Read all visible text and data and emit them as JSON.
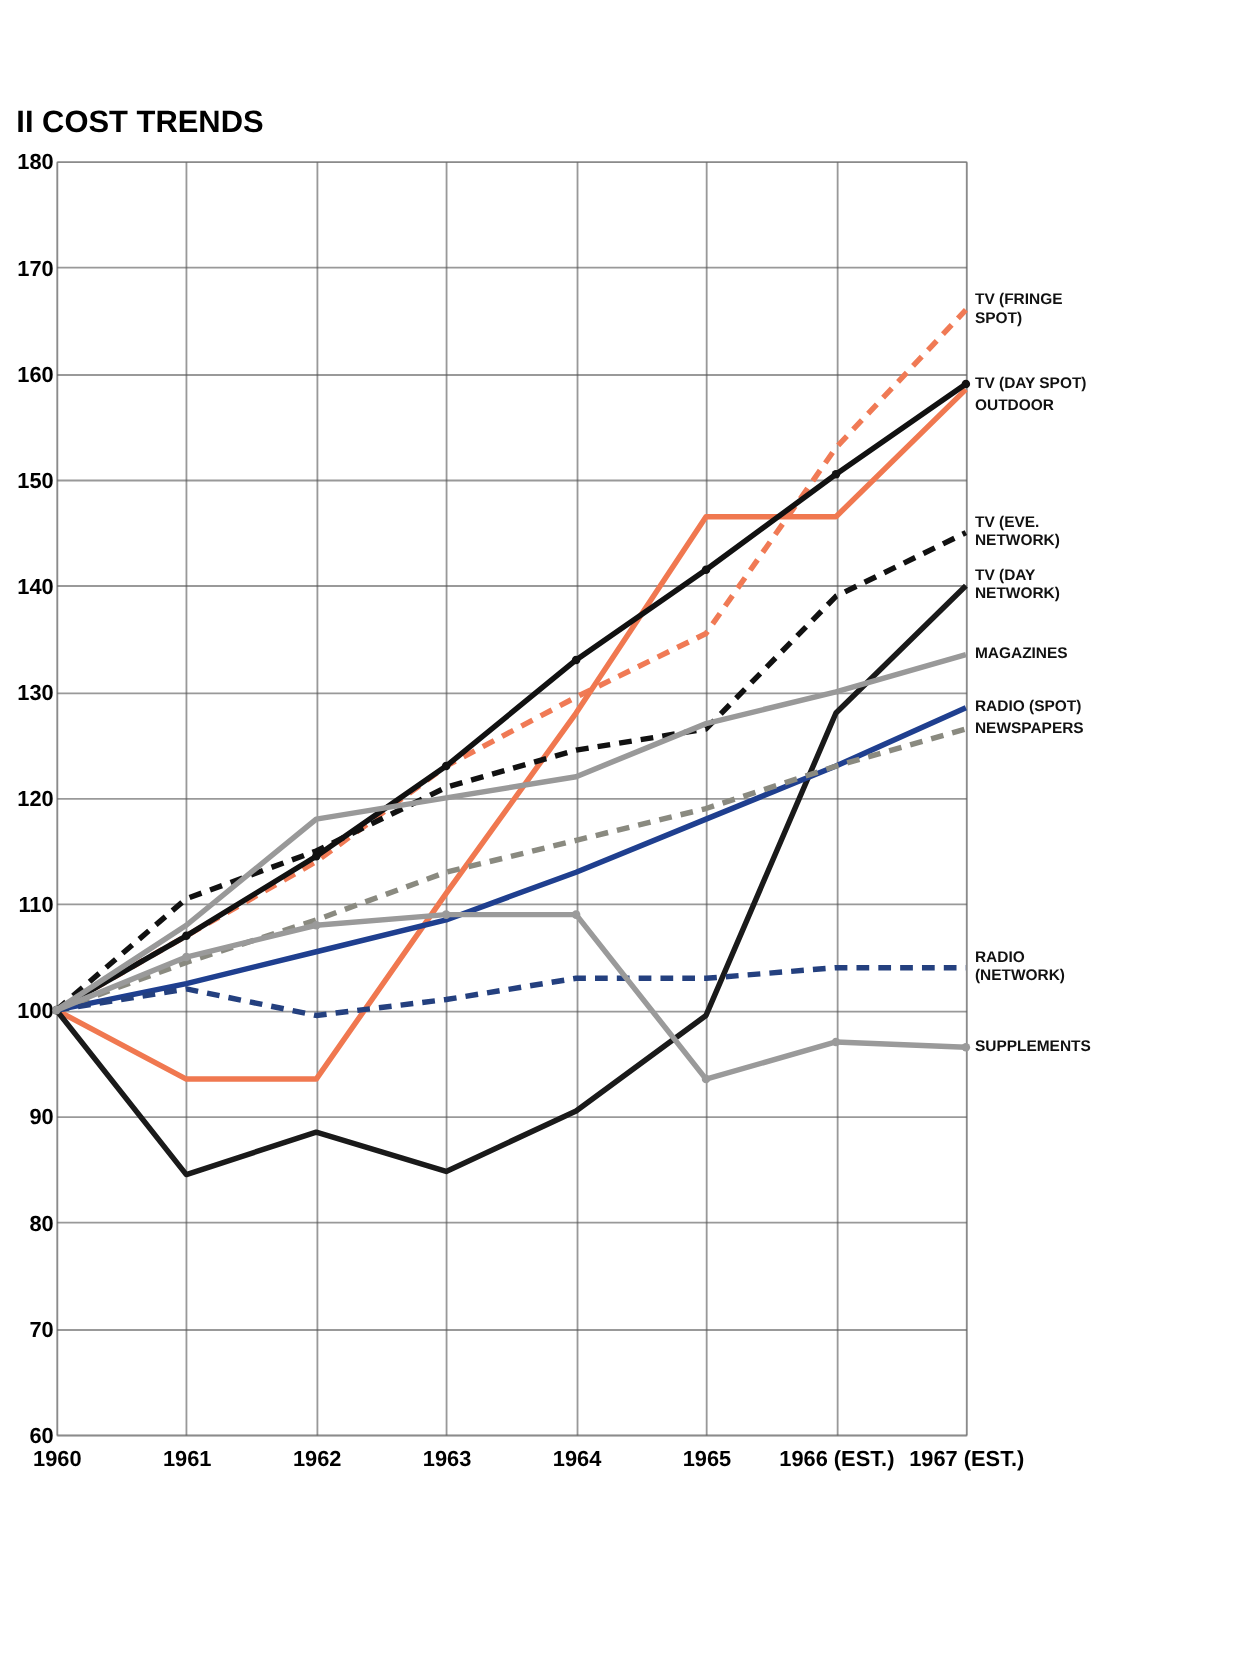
{
  "chart_data": {
    "type": "line",
    "title": "II  COST TRENDS",
    "categories": [
      "1960",
      "1961",
      "1962",
      "1963",
      "1964",
      "1965",
      "1966 (EST.)",
      "1967 (EST.)"
    ],
    "ylim": [
      60,
      180
    ],
    "yticks": [
      60,
      70,
      80,
      90,
      100,
      110,
      120,
      130,
      140,
      150,
      160,
      170,
      180
    ],
    "grid": true,
    "series": [
      {
        "name": "TV (FRINGE SPOT)",
        "color": "#f07a55",
        "line_style": "dashed",
        "marker": "none",
        "values": [
          100,
          107,
          114,
          123,
          129.5,
          135.5,
          153,
          166
        ]
      },
      {
        "name": "OUTDOOR",
        "color": "#f07850",
        "line_style": "solid",
        "marker": "none",
        "values": [
          100,
          93.5,
          93.5,
          111,
          128,
          146.5,
          146.5,
          158.5
        ]
      },
      {
        "name": "TV (DAY SPOT)",
        "color": "#111111",
        "line_style": "solid",
        "marker": "circle",
        "values": [
          100,
          107,
          114.5,
          123,
          133,
          141.5,
          150.5,
          159
        ]
      },
      {
        "name": "TV (EVE. NETWORK)",
        "color": "#111111",
        "line_style": "dashed",
        "marker": "none",
        "values": [
          100,
          110.5,
          115,
          121,
          124.5,
          126.5,
          139,
          145
        ]
      },
      {
        "name": "TV (DAY NETWORK)",
        "color": "#1a1a1a",
        "line_style": "solid",
        "marker": "none",
        "values": [
          100,
          84.5,
          88.5,
          84.8,
          90.5,
          99.5,
          128,
          140
        ]
      },
      {
        "name": "MAGAZINES",
        "color": "#999999",
        "line_style": "solid",
        "marker": "none",
        "values": [
          100,
          108,
          118,
          120,
          122,
          127,
          130,
          133.5
        ]
      },
      {
        "name": "RADIO (SPOT)",
        "color": "#1f3f8f",
        "line_style": "solid",
        "marker": "none",
        "values": [
          100,
          102.5,
          105.5,
          108.5,
          113,
          118,
          123,
          128.5
        ]
      },
      {
        "name": "NEWSPAPERS",
        "color": "#8a8a80",
        "line_style": "dashed",
        "marker": "none",
        "values": [
          100,
          104.5,
          108.5,
          113,
          116,
          119,
          123,
          126.5
        ]
      },
      {
        "name": "RADIO (NETWORK)",
        "color": "#24407f",
        "line_style": "dashed",
        "marker": "none",
        "values": [
          100,
          102,
          99.5,
          101,
          103,
          103,
          104,
          104
        ]
      },
      {
        "name": "SUPPLEMENTS",
        "color": "#9a9a9a",
        "line_style": "solid",
        "marker": "circle",
        "values": [
          100,
          105,
          108,
          109,
          109,
          93.5,
          97,
          96.5
        ]
      }
    ]
  }
}
